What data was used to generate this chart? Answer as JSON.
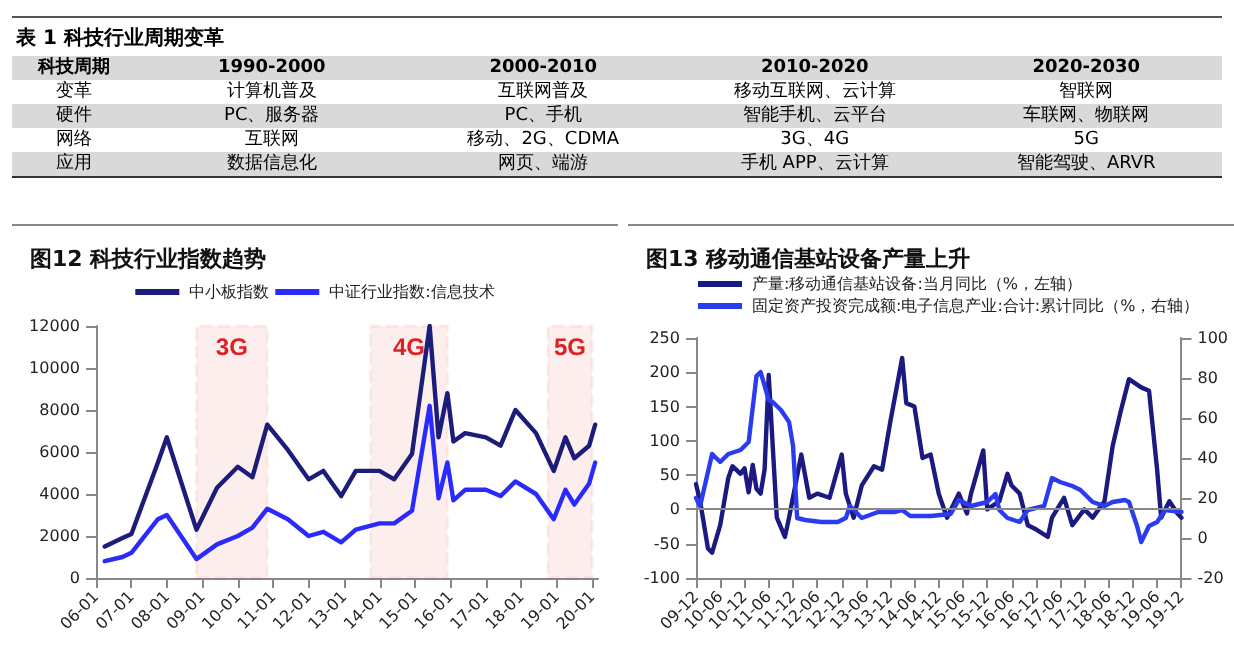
{
  "chart_data": [
    {
      "type": "other",
      "title": "表 1 科技行业周期变革",
      "annotations": [
        "科技周期",
        "1990-2000",
        "2000-2010",
        "2010-2020",
        "2020-2030",
        "变革",
        "计算机普及",
        "互联网普及",
        "移动互联网、云计算",
        "智联网",
        "硬件",
        "PC、服务器",
        "PC、手机",
        "智能手机、云平台",
        "车联网、物联网",
        "网络",
        "互联网",
        "移动、2G、CDMA",
        "3G、4G",
        "5G",
        "应用",
        "数据信息化",
        "网页、端游",
        "手机 APP、云计算",
        "智能驾驶、ARVR"
      ]
    },
    {
      "type": "line",
      "title": "图12 科技行业指数趋势",
      "legend": "top",
      "grid": false,
      "marker": "none",
      "line_style": "solid",
      "x": [
        "2006-04",
        "2006-10",
        "2007-01",
        "2007-10",
        "2008-01",
        "2008-11",
        "2009-06",
        "2010-01",
        "2010-06",
        "2010-11",
        "2011-06",
        "2012-01",
        "2012-06",
        "2012-12",
        "2013-05",
        "2014-01",
        "2014-06",
        "2014-12",
        "2015-06",
        "2015-09",
        "2015-12",
        "2016-02",
        "2016-06",
        "2017-01",
        "2017-06",
        "2017-11",
        "2018-06",
        "2018-12",
        "2019-04",
        "2019-07",
        "2019-12",
        "2020-02"
      ],
      "series": [
        {
          "name": "中小板指数",
          "color": "#1c1c7a",
          "values": [
            1500,
            1900,
            2100,
            5500,
            6700,
            2300,
            4300,
            5300,
            4800,
            7300,
            6100,
            4700,
            5100,
            3900,
            5100,
            5100,
            4700,
            5900,
            12000,
            6700,
            8800,
            6500,
            6900,
            6700,
            6300,
            8000,
            6900,
            5100,
            6700,
            5700,
            6300,
            7300
          ]
        },
        {
          "name": "中证行业指数:信息技术",
          "color": "#2a2aff",
          "values": [
            800,
            1000,
            1200,
            2800,
            3000,
            900,
            1600,
            2000,
            2400,
            3300,
            2800,
            2000,
            2200,
            1700,
            2300,
            2600,
            2600,
            3200,
            8200,
            3800,
            5500,
            3700,
            4200,
            4200,
            3900,
            4600,
            4000,
            2800,
            4200,
            3500,
            4500,
            5500
          ]
        }
      ],
      "xlim": [
        "2006-01",
        "2020-03"
      ],
      "xticks": [
        {
          "value": "2006-01",
          "label": "06-01"
        },
        {
          "value": "2007-01",
          "label": "07-01"
        },
        {
          "value": "2008-01",
          "label": "08-01"
        },
        {
          "value": "2009-01",
          "label": "09-01"
        },
        {
          "value": "2010-01",
          "label": "10-01"
        },
        {
          "value": "2011-01",
          "label": "11-01"
        },
        {
          "value": "2012-01",
          "label": "12-01"
        },
        {
          "value": "2013-01",
          "label": "13-01"
        },
        {
          "value": "2014-01",
          "label": "14-01"
        },
        {
          "value": "2015-01",
          "label": "15-01"
        },
        {
          "value": "2016-01",
          "label": "16-01"
        },
        {
          "value": "2017-01",
          "label": "17-01"
        },
        {
          "value": "2018-01",
          "label": "18-01"
        },
        {
          "value": "2019-01",
          "label": "19-01"
        },
        {
          "value": "2020-01",
          "label": "20-01"
        }
      ],
      "ylim": [
        0,
        12000
      ],
      "yticks": [
        0,
        2000,
        4000,
        6000,
        8000,
        10000,
        12000
      ],
      "bands": [
        {
          "axis": "x",
          "from": "2008-11",
          "to": "2010-11",
          "label": "3G",
          "color": "#e02020"
        },
        {
          "axis": "x",
          "from": "2013-10",
          "to": "2015-12",
          "label": "4G",
          "color": "#e02020"
        },
        {
          "axis": "x",
          "from": "2018-10",
          "to": "2020-01",
          "label": "5G",
          "color": "#e02020"
        }
      ]
    },
    {
      "type": "line",
      "title": "图13 移动通信基站设备产量上升",
      "legend": "top left",
      "grid": false,
      "marker": "none",
      "line_style": "solid",
      "series": [
        {
          "name": "产量:移动通信基站设备:当月同比（%，左轴）",
          "color": "#1a1a80",
          "x": [
            "2009-12",
            "2010-01",
            "2010-03",
            "2010-04",
            "2010-06",
            "2010-08",
            "2010-09",
            "2010-11",
            "2010-12",
            "2011-01",
            "2011-02",
            "2011-03",
            "2011-04",
            "2011-05",
            "2011-06",
            "2011-08",
            "2011-10",
            "2011-11",
            "2012-02",
            "2012-04",
            "2012-06",
            "2012-09",
            "2012-12",
            "2013-01",
            "2013-03",
            "2013-05",
            "2013-08",
            "2013-10",
            "2013-12",
            "2014-03",
            "2014-04",
            "2014-06",
            "2014-08",
            "2014-10",
            "2014-12",
            "2015-02",
            "2015-05",
            "2015-07",
            "2015-08",
            "2015-11",
            "2015-12",
            "2016-03",
            "2016-05",
            "2016-06",
            "2016-08",
            "2016-10",
            "2016-12",
            "2017-03",
            "2017-04",
            "2017-07",
            "2017-09",
            "2017-12",
            "2018-02",
            "2018-05",
            "2018-07",
            "2018-09",
            "2018-11",
            "2019-02",
            "2019-04",
            "2019-06",
            "2019-07",
            "2019-09",
            "2019-11",
            "2019-12"
          ],
          "values": [
            37,
            12,
            -57,
            -63,
            -23,
            46,
            63,
            52,
            60,
            25,
            65,
            30,
            23,
            58,
            196,
            -12,
            -40,
            -12,
            80,
            17,
            23,
            17,
            80,
            23,
            -12,
            35,
            63,
            58,
            127,
            221,
            155,
            150,
            75,
            80,
            23,
            -12,
            23,
            -6,
            23,
            86,
            0,
            12,
            52,
            35,
            23,
            -23,
            -29,
            -40,
            -12,
            17,
            -23,
            0,
            -12,
            12,
            92,
            144,
            190,
            178,
            173,
            58,
            -12,
            12,
            -6,
            -12
          ]
        },
        {
          "name": "固定资产投资完成额:电子信息产业:合计:累计同比（%，右轴）",
          "color": "#2b3cf0",
          "axis": "y2",
          "x": [
            "2009-12",
            "2010-01",
            "2010-04",
            "2010-06",
            "2010-08",
            "2010-11",
            "2011-01",
            "2011-03",
            "2011-04",
            "2011-06",
            "2011-07",
            "2011-09",
            "2011-11",
            "2011-12",
            "2012-01",
            "2012-03",
            "2012-07",
            "2012-11",
            "2013-01",
            "2013-02",
            "2013-05",
            "2013-09",
            "2014-01",
            "2014-03",
            "2014-05",
            "2014-10",
            "2015-03",
            "2015-05",
            "2015-08",
            "2015-12",
            "2016-02",
            "2016-03",
            "2016-05",
            "2016-08",
            "2016-10",
            "2017-02",
            "2017-04",
            "2017-06",
            "2017-09",
            "2017-11",
            "2018-02",
            "2018-05",
            "2018-07",
            "2018-10",
            "2018-11",
            "2019-01",
            "2019-02",
            "2019-04",
            "2019-06",
            "2019-08",
            "2019-12"
          ],
          "values": [
            20,
            16,
            42,
            38,
            42,
            44,
            48,
            81,
            83,
            69,
            68,
            64,
            58,
            46,
            10,
            9,
            8,
            8,
            10,
            16,
            10,
            13,
            13,
            14,
            11,
            11,
            12,
            19,
            16,
            18,
            22,
            14,
            10,
            8,
            14,
            16,
            30,
            28,
            26,
            24,
            18,
            16,
            18,
            19,
            18,
            6,
            -2,
            6,
            8,
            14,
            13
          ]
        }
      ],
      "xlim": [
        "2009-12",
        "2019-12"
      ],
      "xticks": [
        {
          "value": "2009-12",
          "label": "09-12"
        },
        {
          "value": "2010-06",
          "label": "10-06"
        },
        {
          "value": "2010-12",
          "label": "10-12"
        },
        {
          "value": "2011-06",
          "label": "11-06"
        },
        {
          "value": "2011-12",
          "label": "11-12"
        },
        {
          "value": "2012-06",
          "label": "12-06"
        },
        {
          "value": "2012-12",
          "label": "12-12"
        },
        {
          "value": "2013-06",
          "label": "13-06"
        },
        {
          "value": "2013-12",
          "label": "13-12"
        },
        {
          "value": "2014-06",
          "label": "14-06"
        },
        {
          "value": "2014-12",
          "label": "14-12"
        },
        {
          "value": "2015-06",
          "label": "15-06"
        },
        {
          "value": "2015-12",
          "label": "15-12"
        },
        {
          "value": "2016-06",
          "label": "16-06"
        },
        {
          "value": "2016-12",
          "label": "16-12"
        },
        {
          "value": "2017-06",
          "label": "17-06"
        },
        {
          "value": "2017-12",
          "label": "17-12"
        },
        {
          "value": "2018-06",
          "label": "18-06"
        },
        {
          "value": "2018-12",
          "label": "18-12"
        },
        {
          "value": "2019-06",
          "label": "19-06"
        },
        {
          "value": "2019-12",
          "label": "19-12"
        }
      ],
      "ylim": [
        -100,
        250
      ],
      "yticks": [
        -100,
        -50,
        0,
        50,
        100,
        150,
        200,
        250
      ],
      "y2lim": [
        -20,
        100
      ],
      "y2ticks": [
        -20,
        0,
        20,
        40,
        60,
        80,
        100
      ],
      "ref_lines": [
        {
          "axis": "y",
          "value": 0,
          "color": "#888888"
        }
      ]
    }
  ]
}
